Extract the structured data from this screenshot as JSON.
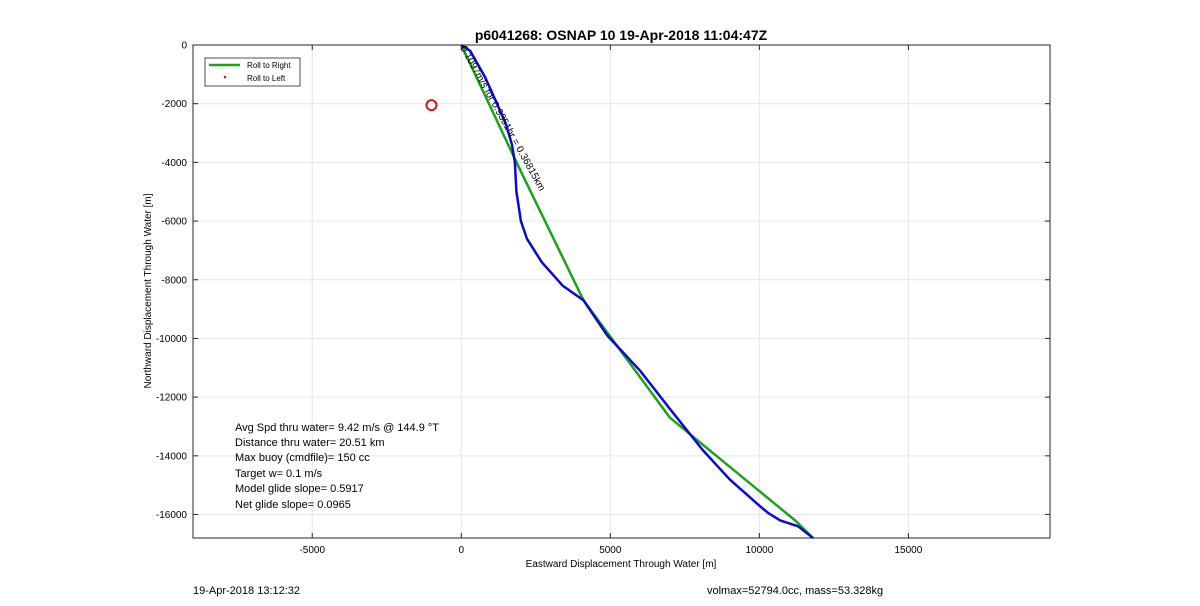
{
  "chart_data": {
    "type": "line",
    "title": "p6041268: OSNAP 10 19-Apr-2018 11:04:47Z",
    "xlabel": "Eastward Displacement Through Water [m]",
    "ylabel": "Northward Displacement Through Water [m]",
    "xlim": [
      -9000,
      19750
    ],
    "ylim": [
      -16800,
      0
    ],
    "xticks": [
      -5000,
      0,
      5000,
      10000,
      15000
    ],
    "yticks": [
      0,
      -2000,
      -4000,
      -6000,
      -8000,
      -10000,
      -12000,
      -14000,
      -16000
    ],
    "grid": true,
    "legend_position": "top-left",
    "series": [
      {
        "name": "Roll to Right",
        "style": "line",
        "color": "#1aa31a",
        "x": [
          0,
          1900,
          4100,
          7000,
          11200,
          11800
        ],
        "y": [
          0,
          -4100,
          -8700,
          -12700,
          -16200,
          -16800
        ]
      },
      {
        "style": "line",
        "color": "#0a0acc",
        "x": [
          0,
          300,
          800,
          1200,
          1500,
          1700,
          1800,
          1850,
          2000,
          2200,
          2700,
          3400,
          4100,
          4900,
          6000,
          7000,
          8100,
          9000,
          10000,
          10300,
          10700,
          11300,
          11800
        ],
        "y": [
          0,
          -200,
          -1100,
          -2000,
          -2700,
          -3400,
          -4000,
          -5000,
          -6000,
          -6600,
          -7400,
          -8200,
          -8700,
          -9900,
          -11100,
          -12400,
          -13800,
          -14800,
          -15700,
          -15950,
          -16200,
          -16400,
          -16800
        ]
      },
      {
        "name": "Roll to Left",
        "style": "marker",
        "color": "#cc1a1a",
        "x": [],
        "y": []
      }
    ],
    "markers": [
      {
        "x": -1000,
        "y": -2050,
        "color": "#cc1a1a",
        "shape": "circle"
      }
    ],
    "annotations": [
      {
        "text": "0.1097m/s for 0.9351hr = 0.36815km",
        "x": 0,
        "y": 0,
        "rotation_deg": 61
      }
    ],
    "stats": [
      "Avg Spd thru water=  9.42 m/s @ 144.9 °T",
      "Distance thru water= 20.51 km",
      "Max buoy (cmdfile)= 150 cc",
      "Target w= 0.1 m/s",
      "Model glide slope= 0.5917",
      "Net glide slope= 0.0965"
    ]
  },
  "footer": {
    "left": "19-Apr-2018 13:12:32",
    "right": "volmax=52794.0cc, mass=53.328kg"
  }
}
